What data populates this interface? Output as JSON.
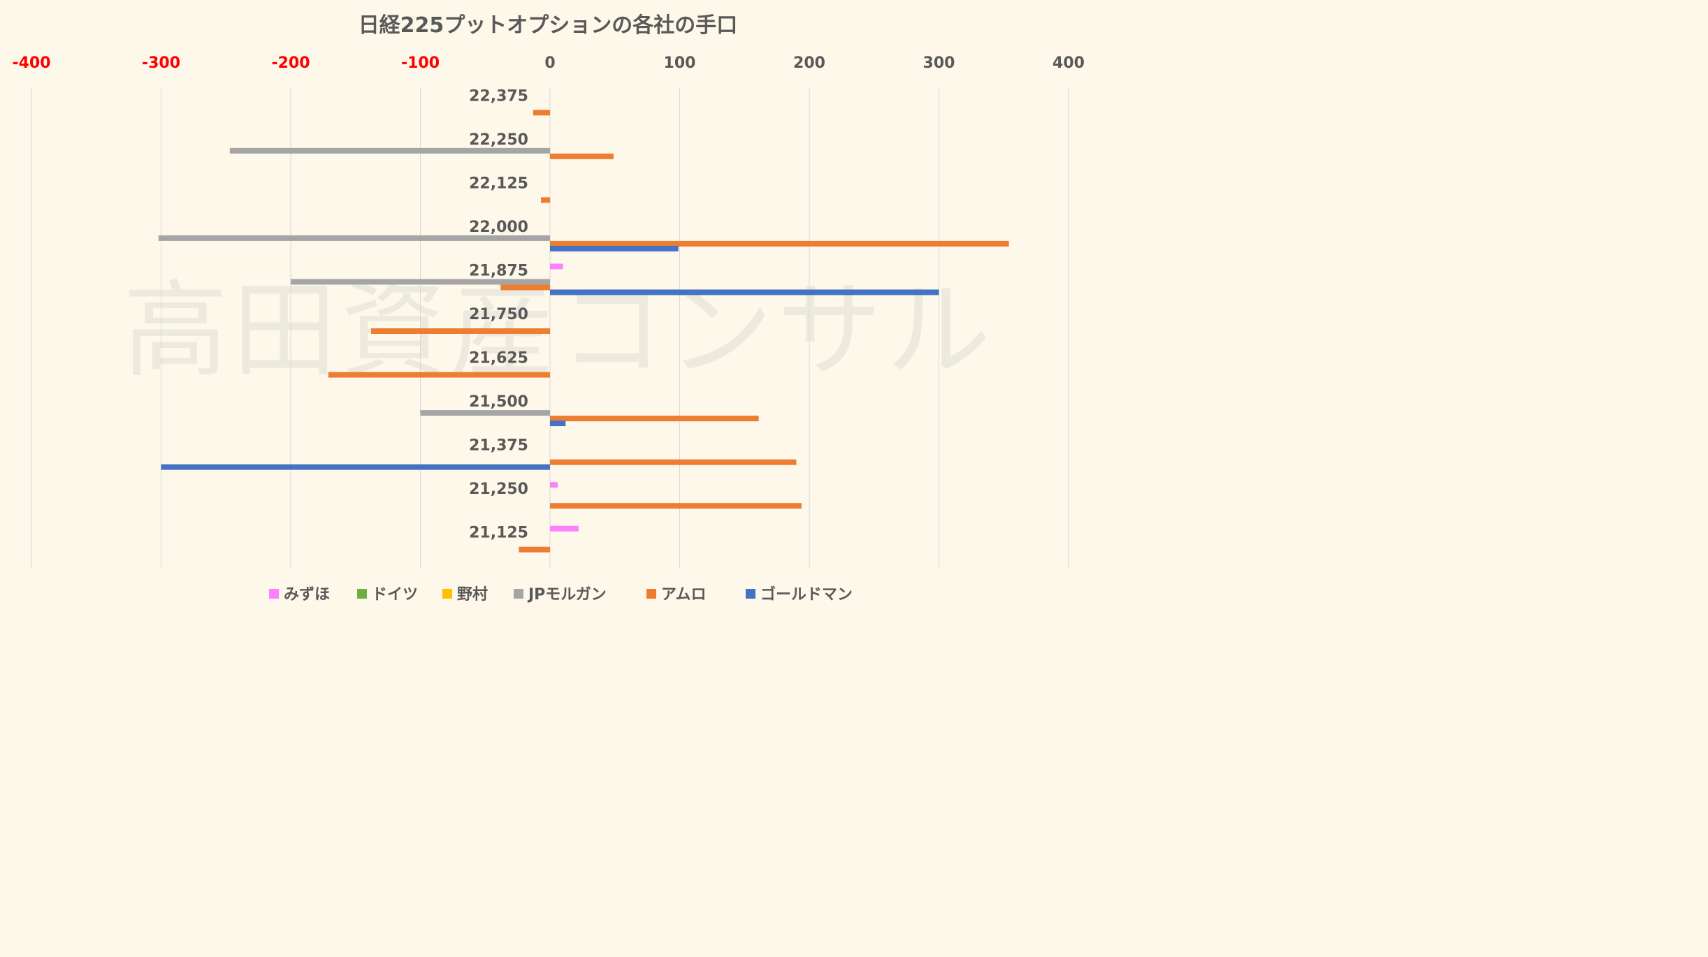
{
  "chart_data": {
    "type": "bar",
    "orientation": "horizontal",
    "title": "日経225プットオプションの各社の手口",
    "watermark": "高田資産コンサル",
    "xlim": [
      -400,
      400
    ],
    "x_ticks": [
      -400,
      -300,
      -200,
      -100,
      0,
      100,
      200,
      300,
      400
    ],
    "x_tick_labels": [
      "-400",
      "-300",
      "-200",
      "-100",
      "0",
      "100",
      "200",
      "300",
      "400"
    ],
    "negative_tick_color": "#ff0000",
    "positive_tick_color": "#595959",
    "grid": true,
    "legend_position": "bottom",
    "categories": [
      "22,375",
      "22,250",
      "22,125",
      "22,000",
      "21,875",
      "21,750",
      "21,625",
      "21,500",
      "21,375",
      "21,250",
      "21,125"
    ],
    "series": [
      {
        "name": "みずほ",
        "color": "#ff80ff",
        "values": [
          0,
          0,
          0,
          0,
          10,
          0,
          0,
          0,
          0,
          6,
          22
        ]
      },
      {
        "name": "ドイツ",
        "color": "#70ad47",
        "values": [
          0,
          0,
          0,
          0,
          0,
          0,
          0,
          0,
          0,
          0,
          0
        ]
      },
      {
        "name": "野村",
        "color": "#ffc000",
        "values": [
          0,
          0,
          0,
          0,
          0,
          0,
          0,
          0,
          0,
          0,
          0
        ]
      },
      {
        "name": "JPモルガン",
        "color": "#a5a5a5",
        "values": [
          0,
          -247,
          0,
          -302,
          -200,
          0,
          0,
          -100,
          0,
          0,
          0
        ]
      },
      {
        "name": "アムロ",
        "color": "#ed7d31",
        "values": [
          -13,
          49,
          -7,
          354,
          -38,
          -138,
          -171,
          161,
          190,
          194,
          -24
        ]
      },
      {
        "name": "ゴールドマン",
        "color": "#4472c4",
        "values": [
          0,
          0,
          0,
          99,
          300,
          0,
          0,
          12,
          -300,
          0,
          0
        ]
      }
    ]
  }
}
